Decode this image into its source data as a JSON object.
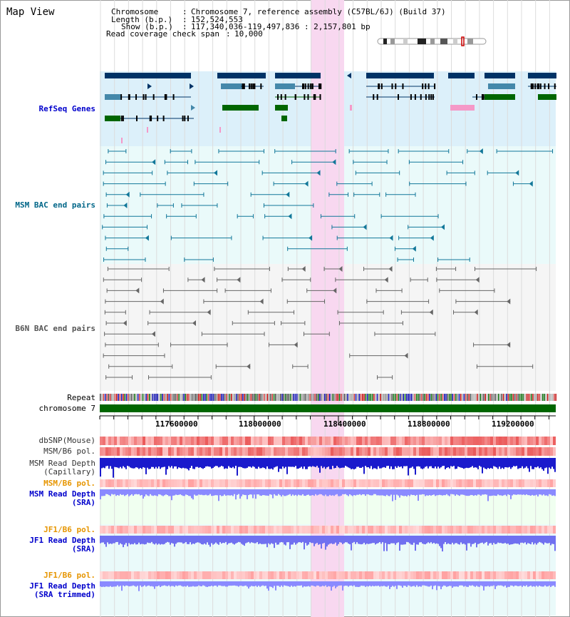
{
  "page_title": "Map View",
  "info": {
    "chromosome_key": "Chromosome",
    "chromosome_val": "Chromosome 7, reference assembly (C57BL/6J) (Build 37)",
    "length_key": "Length (b.p.)",
    "length_val": "152,524,553",
    "show_key": "Show (b.p.)",
    "show_val": "117,340,036-119,497,836 : 2,157,801 bp",
    "coverage_key": "Read coverage check span",
    "coverage_val": "10,000"
  },
  "tracks": {
    "refseq": "RefSeq Genes",
    "msm_bac": "MSM BAC end pairs",
    "b6n_bac": "B6N BAC end pairs",
    "repeat": "Repeat",
    "chrom": "chromosome 7",
    "dbsnp": "dbSNP(Mouse)",
    "msm_pol_cap": "MSM/B6 pol.",
    "msm_depth_cap_1": "MSM Read Depth",
    "msm_depth_cap_2": "(Capillary)",
    "msm_pol_sra": "MSM/B6 pol.",
    "msm_depth_sra_1": "MSM Read Depth",
    "msm_depth_sra_2": "(SRA)",
    "jf1_pol": "JF1/B6 pol.",
    "jf1_depth_1": "JF1 Read Depth",
    "jf1_depth_2": "(SRA)",
    "jf1_pol_trim": "JF1/B6 pol.",
    "jf1_trim_1": "JF1 Read Depth",
    "jf1_trim_2": "(SRA trimmed)"
  },
  "axis_ticks": [
    "117600000",
    "118000000",
    "118400000",
    "118800000",
    "119200000"
  ],
  "colors": {
    "refseq_label": "#0000cc",
    "msm_label": "#006688",
    "b6n_label": "#555555",
    "orange_label": "#e69500",
    "highlight": "#f8d8f0",
    "gene_dark": "#003366",
    "gene_blue": "#4488aa",
    "gene_green": "#006600",
    "gene_pink": "#f599c8",
    "chrom_bar": "#006600"
  }
}
